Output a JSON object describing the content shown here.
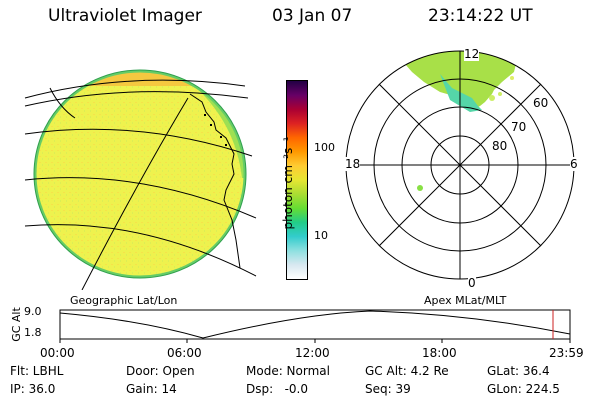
{
  "header": {
    "instrument": "Ultraviolet Imager",
    "date": "03 Jan 07",
    "time": "23:14:22 UT"
  },
  "colorbar": {
    "unit_label": "photon cm⁻²s⁻¹",
    "ticks": [
      "100",
      "10"
    ],
    "scale": "log",
    "colors": [
      "#ffffff",
      "#d8e8f0",
      "#8ee0e0",
      "#33cccc",
      "#22cc88",
      "#66dd33",
      "#aadd33",
      "#e6e633",
      "#ffcc33",
      "#ff9900",
      "#ff6600",
      "#dd2222",
      "#aa0033",
      "#660066",
      "#220044"
    ]
  },
  "globe_panel": {
    "label": "Geographic Lat/Lon",
    "colors": {
      "disk": "#eaf04a",
      "rim": "#88dd55",
      "cap": "#f5c840",
      "coast": "#000000",
      "grid": "#000000"
    }
  },
  "polar_panel": {
    "label": "Apex MLat/MLT",
    "lat_labels": [
      "60",
      "70",
      "80"
    ],
    "mlt_labels": {
      "top": "12",
      "left": "18",
      "right": "6",
      "bottom": "0"
    }
  },
  "timeline": {
    "axis_label": "GC Alt",
    "yticks": [
      "9.0",
      "1.8"
    ],
    "xticks": [
      "00:00",
      "06:00",
      "12:00",
      "18:00",
      "23:59"
    ],
    "marker_color": "#cc2222"
  },
  "info": {
    "flt": "Flt: LBHL",
    "door": "Door: Open",
    "mode": "Mode: Normal",
    "gc_alt": "GC Alt: 4.2 Re",
    "glat": "GLat: 36.4",
    "ip": "IP: 36.0",
    "gain": "Gain: 14",
    "dsp": "Dsp:   -0.0",
    "seq": "Seq: 39",
    "glon": "GLon: 224.5"
  }
}
